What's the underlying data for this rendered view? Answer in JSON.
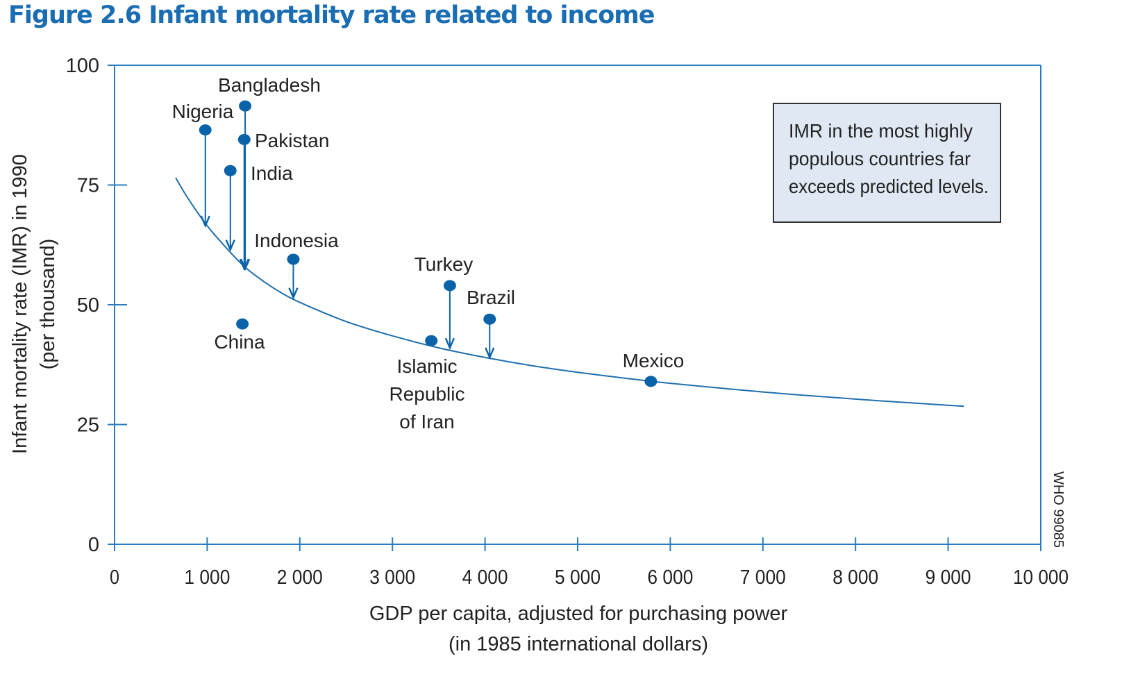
{
  "figure_title": "Figure 2.6  Infant mortality rate related to income",
  "colors": {
    "title": "#1a6db3",
    "axis": "#2a7cc0",
    "curve": "#1f6fae",
    "marker": "#0a62a8",
    "note_bg": "#dfe8f3"
  },
  "chart_data": {
    "type": "scatter",
    "title": "Figure 2.6  Infant mortality rate related to income",
    "xlabel": [
      "GDP per capita, adjusted for purchasing power",
      "(in 1985 international dollars)"
    ],
    "ylabel": [
      "Infant mortality rate (IMR) in 1990",
      "(per thousand)"
    ],
    "xlim": [
      0,
      10000
    ],
    "ylim": [
      0,
      100
    ],
    "x_ticks": [
      0,
      1000,
      2000,
      3000,
      4000,
      5000,
      6000,
      7000,
      8000,
      9000,
      10000
    ],
    "x_tick_labels": [
      "0",
      "1 000",
      "2 000",
      "3 000",
      "4 000",
      "5 000",
      "6 000",
      "7 000",
      "8 000",
      "9 000",
      "10 000"
    ],
    "y_ticks": [
      0,
      25,
      50,
      75,
      100
    ],
    "y_tick_labels": [
      "0",
      "25",
      "50",
      "75",
      "100"
    ],
    "grid": false,
    "points": [
      {
        "label": [
          "Bangladesh"
        ],
        "x": 1410,
        "y": 91.5,
        "predicted_y": 57.5
      },
      {
        "label": [
          "Nigeria"
        ],
        "x": 980,
        "y": 86.5,
        "predicted_y": 66.5
      },
      {
        "label": [
          "Pakistan"
        ],
        "x": 1400,
        "y": 84.5,
        "predicted_y": 57.5
      },
      {
        "label": [
          "India"
        ],
        "x": 1250,
        "y": 78,
        "predicted_y": 61.5
      },
      {
        "label": [
          "Indonesia"
        ],
        "x": 1930,
        "y": 59.5,
        "predicted_y": 51.5
      },
      {
        "label": [
          "Turkey"
        ],
        "x": 3620,
        "y": 54,
        "predicted_y": 41
      },
      {
        "label": [
          "Brazil"
        ],
        "x": 4050,
        "y": 47,
        "predicted_y": 39
      },
      {
        "label": [
          "China"
        ],
        "x": 1380,
        "y": 46,
        "predicted_y": null
      },
      {
        "label": [
          "Islamic",
          "Republic",
          "of Iran"
        ],
        "x": 3420,
        "y": 42.5,
        "predicted_y": null
      },
      {
        "label": [
          "Mexico"
        ],
        "x": 5790,
        "y": 34,
        "predicted_y": null
      }
    ],
    "curve": {
      "name": "",
      "x": [
        660,
        800,
        1000,
        1200,
        1400,
        1600,
        1800,
        2000,
        2500,
        3000,
        3500,
        4000,
        4500,
        5000,
        5500,
        6000,
        7000,
        8000,
        9170
      ],
      "y": [
        76.5,
        72,
        66.5,
        62,
        58,
        55,
        52.5,
        50.5,
        46.5,
        43.5,
        41,
        39,
        37.3,
        35.9,
        34.7,
        33.6,
        31.8,
        30.3,
        28.8
      ]
    },
    "annotation": [
      "IMR in the most highly",
      "populous countries far",
      "exceeds predicted levels."
    ],
    "watermark": "WHO 99085"
  }
}
